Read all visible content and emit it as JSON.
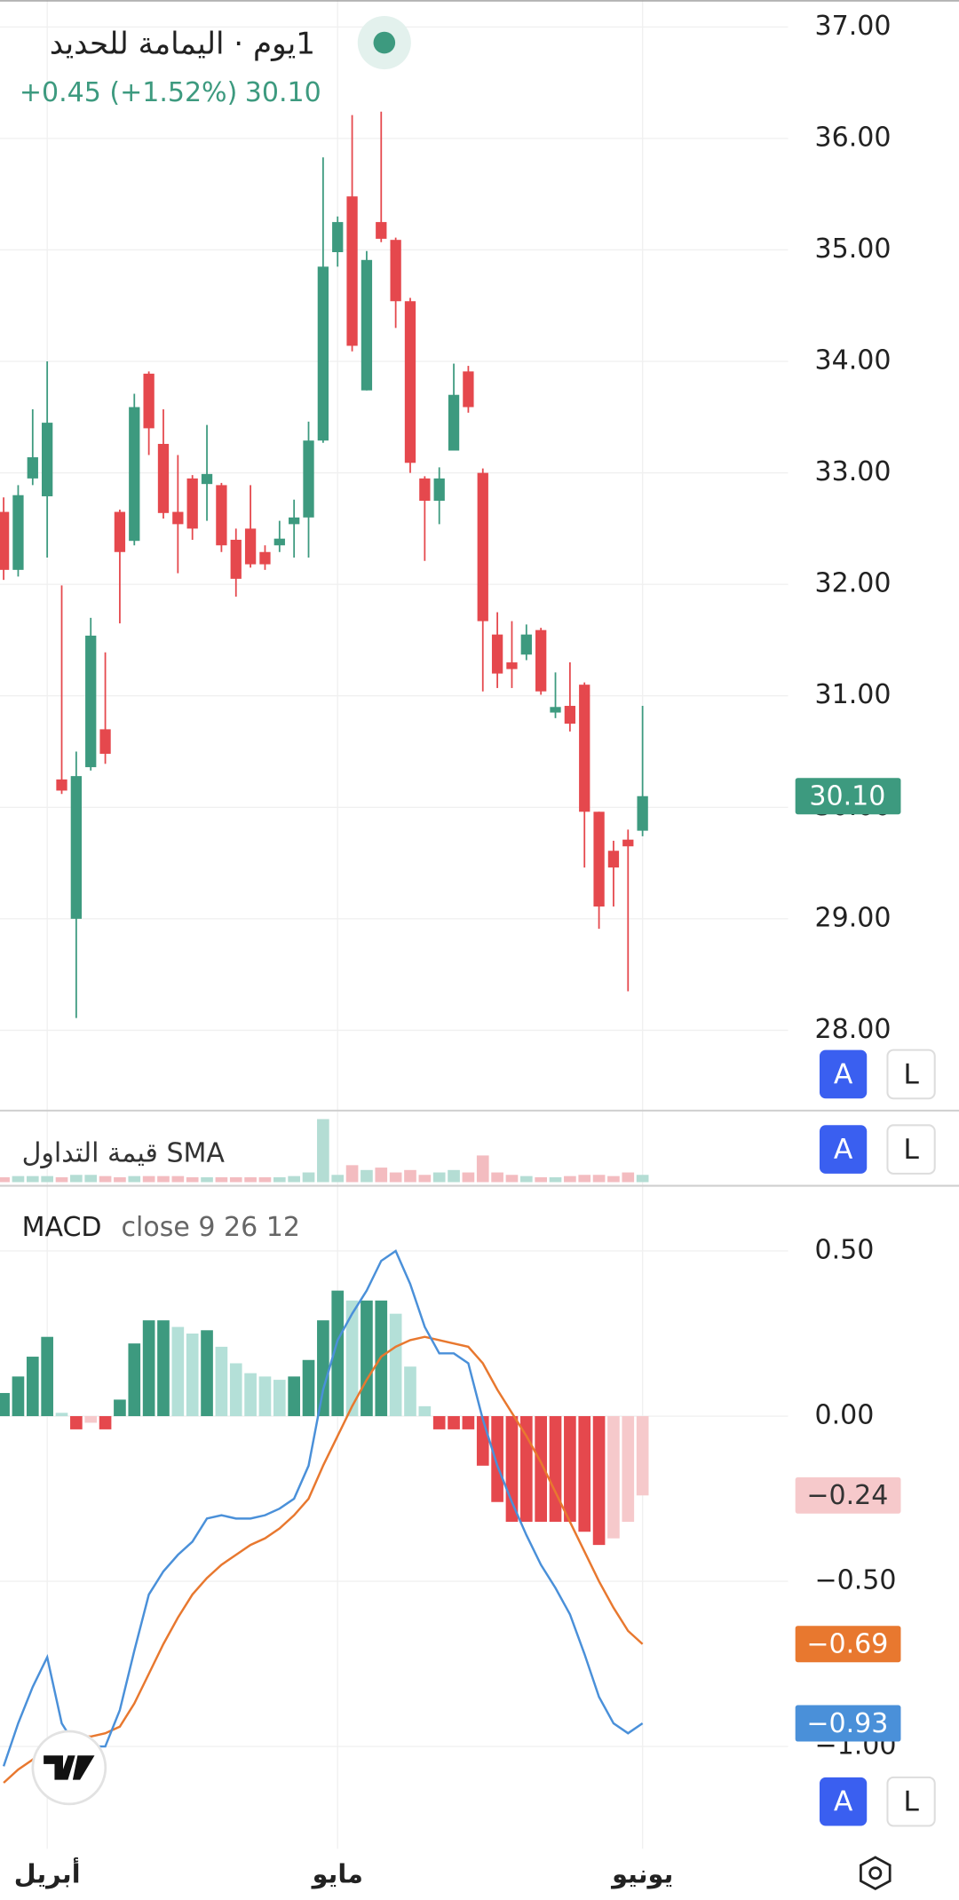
{
  "controls": [
    "A",
    "L"
  ],
  "chart_data": [
    {
      "type": "candlestick",
      "title": "1يوم · اليمامة للحديد",
      "annotations": {
        "change": "+0.45 (+1.52%)",
        "last": "30.10"
      },
      "up_color": "#3d9a7f",
      "down_color": "#e5484d",
      "open": [
        32.65,
        32.13,
        32.95,
        32.79,
        30.25,
        29.0,
        30.36,
        30.7,
        32.65,
        32.39,
        33.89,
        33.26,
        32.65,
        32.95,
        32.9,
        32.89,
        32.4,
        32.5,
        32.29,
        32.35,
        32.54,
        32.6,
        33.29,
        34.98,
        35.48,
        33.74,
        35.25,
        35.09,
        34.54,
        32.95,
        32.75,
        33.2,
        33.91,
        33.0,
        31.55,
        31.3,
        31.37,
        31.59,
        30.85,
        30.91,
        31.1,
        29.96,
        29.61,
        29.71,
        29.79
      ],
      "high": [
        32.78,
        32.89,
        33.57,
        34.0,
        31.99,
        30.5,
        31.7,
        31.39,
        32.67,
        33.71,
        33.91,
        33.57,
        33.16,
        32.98,
        33.43,
        32.91,
        32.5,
        32.89,
        32.35,
        32.57,
        32.76,
        33.46,
        35.83,
        35.3,
        36.21,
        34.99,
        36.24,
        35.11,
        34.57,
        32.97,
        33.05,
        33.98,
        33.96,
        33.04,
        31.75,
        31.67,
        31.64,
        31.61,
        31.21,
        31.3,
        31.12,
        29.96,
        29.7,
        29.8,
        30.91
      ],
      "low": [
        32.04,
        32.07,
        32.89,
        32.24,
        30.12,
        28.11,
        30.33,
        30.39,
        31.65,
        32.35,
        33.16,
        32.59,
        32.1,
        32.4,
        32.57,
        32.29,
        31.89,
        32.15,
        32.13,
        32.29,
        32.24,
        32.24,
        33.27,
        34.85,
        34.09,
        33.74,
        35.07,
        34.3,
        33.0,
        32.21,
        32.54,
        33.2,
        33.54,
        31.04,
        31.07,
        31.07,
        31.32,
        31.01,
        30.8,
        30.68,
        29.46,
        28.91,
        29.11,
        28.35,
        29.74
      ],
      "close": [
        32.13,
        32.8,
        33.14,
        33.45,
        30.15,
        30.28,
        31.54,
        30.48,
        32.29,
        33.59,
        33.4,
        32.64,
        32.54,
        32.5,
        32.99,
        32.35,
        32.05,
        32.18,
        32.18,
        32.41,
        32.6,
        33.29,
        34.85,
        35.25,
        34.14,
        34.91,
        35.1,
        34.54,
        33.09,
        32.75,
        32.95,
        33.7,
        33.59,
        31.67,
        31.2,
        31.24,
        31.55,
        31.04,
        30.9,
        30.75,
        29.96,
        29.11,
        29.46,
        29.65,
        30.1
      ],
      "ylim": [
        27.29,
        37.24
      ],
      "yticks": [
        {
          "value": 28,
          "label": "28.00"
        },
        {
          "value": 29,
          "label": "29.00"
        },
        {
          "value": 30,
          "label": "30.00"
        },
        {
          "value": 31,
          "label": "31.00"
        },
        {
          "value": 32,
          "label": "32.00"
        },
        {
          "value": 33,
          "label": "33.00"
        },
        {
          "value": 34,
          "label": "34.00"
        },
        {
          "value": 35,
          "label": "35.00"
        },
        {
          "value": 36,
          "label": "36.00"
        },
        {
          "value": 37,
          "label": "37.00"
        }
      ],
      "grid": true
    },
    {
      "type": "volume",
      "title": "قيمة التداول SMA",
      "up_color": "#b4ddd4",
      "down_color": "#f3bcc0",
      "values": [
        4,
        5,
        5,
        5,
        4,
        6,
        6,
        5,
        4,
        5,
        5,
        5,
        5,
        4,
        4,
        4,
        4,
        4,
        4,
        4,
        5,
        8,
        52,
        6,
        14,
        10,
        12,
        8,
        10,
        6,
        8,
        10,
        8,
        22,
        8,
        6,
        5,
        4,
        4,
        5,
        6,
        6,
        5,
        8,
        6
      ],
      "ylim": [
        0,
        57
      ]
    },
    {
      "type": "macd",
      "title": "MACD",
      "subtitle": "close 9 26 12",
      "categories": [
        null,
        null,
        null,
        "أبريل",
        null,
        null,
        null,
        null,
        null,
        null,
        null,
        null,
        null,
        null,
        null,
        null,
        null,
        null,
        null,
        null,
        null,
        null,
        null,
        "مايو",
        null,
        null,
        null,
        null,
        null,
        null,
        null,
        null,
        null,
        null,
        null,
        null,
        null,
        null,
        null,
        null,
        null,
        null,
        null,
        null,
        "يونيو"
      ],
      "histogram": {
        "colors": {
          "pos_up": "#3d9a7f",
          "pos_down": "#b4e0d8",
          "neg_down": "#e5484d",
          "neg_up": "#f6c9cb"
        },
        "values": [
          0.07,
          0.12,
          0.18,
          0.24,
          0.01,
          -0.04,
          -0.02,
          -0.04,
          0.05,
          0.22,
          0.29,
          0.29,
          0.27,
          0.25,
          0.26,
          0.21,
          0.16,
          0.13,
          0.12,
          0.11,
          0.12,
          0.17,
          0.29,
          0.38,
          0.35,
          0.35,
          0.35,
          0.31,
          0.15,
          0.03,
          -0.04,
          -0.04,
          -0.04,
          -0.15,
          -0.26,
          -0.32,
          -0.32,
          -0.32,
          -0.32,
          -0.32,
          -0.35,
          -0.39,
          -0.37,
          -0.32,
          -0.24
        ],
        "last_label": "−0.24"
      },
      "macd": {
        "color": "#4a90d9",
        "values": [
          -1.06,
          -0.93,
          -0.82,
          -0.73,
          -0.93,
          -1.0,
          -1.0,
          -1.0,
          -0.89,
          -0.71,
          -0.54,
          -0.47,
          -0.42,
          -0.38,
          -0.31,
          -0.3,
          -0.31,
          -0.31,
          -0.3,
          -0.28,
          -0.25,
          -0.15,
          0.08,
          0.23,
          0.31,
          0.38,
          0.47,
          0.5,
          0.4,
          0.27,
          0.19,
          0.19,
          0.16,
          -0.01,
          -0.15,
          -0.26,
          -0.36,
          -0.45,
          -0.52,
          -0.6,
          -0.72,
          -0.85,
          -0.93,
          -0.96,
          -0.93
        ],
        "last_label": "−0.93"
      },
      "signal": {
        "color": "#e8782f",
        "values": [
          -1.11,
          -1.07,
          -1.04,
          -1.0,
          -0.98,
          -0.97,
          -0.97,
          -0.96,
          -0.94,
          -0.87,
          -0.78,
          -0.69,
          -0.61,
          -0.54,
          -0.49,
          -0.45,
          -0.42,
          -0.39,
          -0.37,
          -0.34,
          -0.3,
          -0.25,
          -0.15,
          -0.06,
          0.03,
          0.11,
          0.18,
          0.21,
          0.23,
          0.24,
          0.23,
          0.22,
          0.21,
          0.16,
          0.08,
          0.01,
          -0.06,
          -0.14,
          -0.23,
          -0.32,
          -0.41,
          -0.5,
          -0.58,
          -0.65,
          -0.69
        ],
        "last_label": "−0.69"
      },
      "ylim": [
        -1.31,
        0.69
      ],
      "yticks": [
        {
          "value": 0.5,
          "label": "0.50"
        },
        {
          "value": 0,
          "label": "0.00"
        },
        {
          "value": -0.5,
          "label": "−0.50"
        },
        {
          "value": -1,
          "label": "−1.00"
        }
      ],
      "grid": true
    }
  ]
}
